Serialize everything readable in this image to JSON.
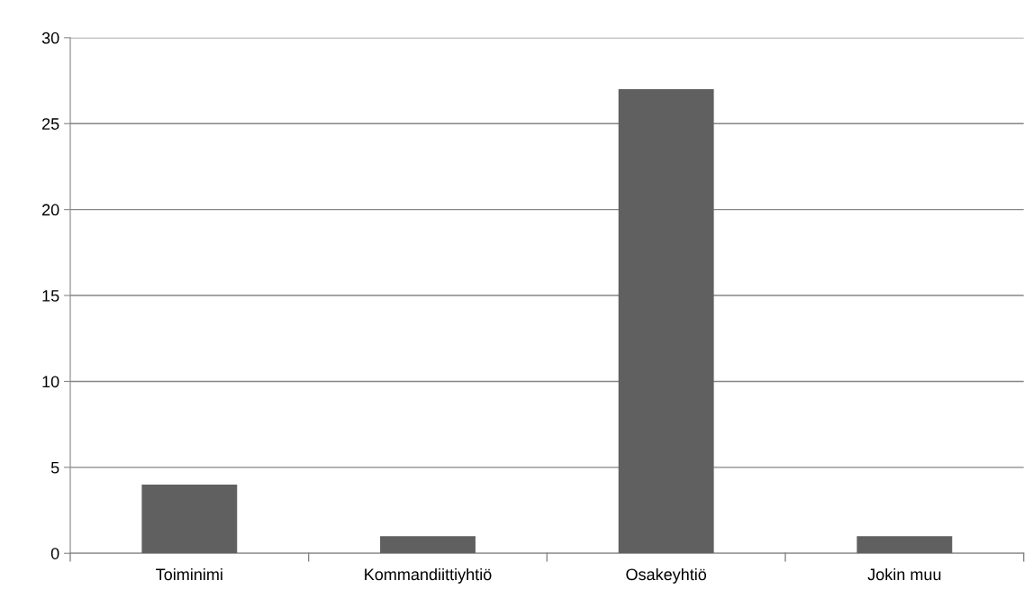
{
  "chart_data": {
    "type": "bar",
    "categories": [
      "Toiminimi",
      "Kommandiittiyhtiö",
      "Osakeyhtiö",
      "Jokin muu"
    ],
    "values": [
      4,
      1,
      27,
      1
    ],
    "color": "#606060",
    "ylim": [
      0,
      30
    ],
    "yticks": [
      0,
      5,
      10,
      15,
      20,
      25,
      30
    ],
    "grid": "y",
    "legend": false
  }
}
